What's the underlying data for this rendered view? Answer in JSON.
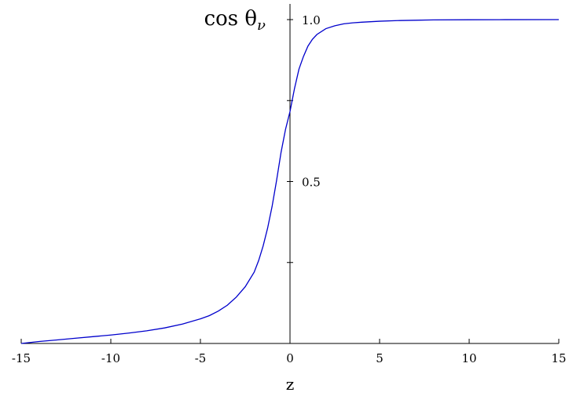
{
  "chart_data": {
    "type": "line",
    "title": "",
    "xlabel": "z",
    "ylabel": "cos θν",
    "xlim": [
      -15,
      15
    ],
    "ylim": [
      0,
      1.0
    ],
    "grid": false,
    "legend": "none",
    "x_ticks": [
      -15,
      -10,
      -5,
      0,
      5,
      10,
      15
    ],
    "x_tick_labels": [
      "-15",
      "-10",
      "-5",
      "0",
      "5",
      "10",
      "15"
    ],
    "y_ticks": [
      0.25,
      0.5,
      0.75,
      1.0
    ],
    "y_tick_labels": [
      "",
      "0.5",
      "",
      "1.0"
    ],
    "series": [
      {
        "color": "#0000cc",
        "x": [
          -15,
          -14,
          -13,
          -12,
          -11,
          -10,
          -9,
          -8,
          -7,
          -6,
          -5,
          -4.5,
          -4,
          -3.5,
          -3,
          -2.5,
          -2,
          -1.75,
          -1.5,
          -1.25,
          -1,
          -0.75,
          -0.5,
          -0.25,
          0,
          0.25,
          0.5,
          0.75,
          1,
          1.25,
          1.5,
          2,
          2.5,
          3,
          3.5,
          4,
          5,
          6,
          7,
          8,
          10,
          12,
          15
        ],
        "y": [
          0.0,
          0.006,
          0.011,
          0.016,
          0.021,
          0.026,
          0.032,
          0.039,
          0.048,
          0.06,
          0.076,
          0.086,
          0.1,
          0.118,
          0.143,
          0.175,
          0.22,
          0.256,
          0.301,
          0.356,
          0.423,
          0.503,
          0.59,
          0.661,
          0.716,
          0.787,
          0.847,
          0.886,
          0.918,
          0.939,
          0.954,
          0.972,
          0.981,
          0.987,
          0.99,
          0.992,
          0.995,
          0.997,
          0.998,
          0.999,
          0.9995,
          0.9998,
          1.0
        ]
      }
    ]
  }
}
